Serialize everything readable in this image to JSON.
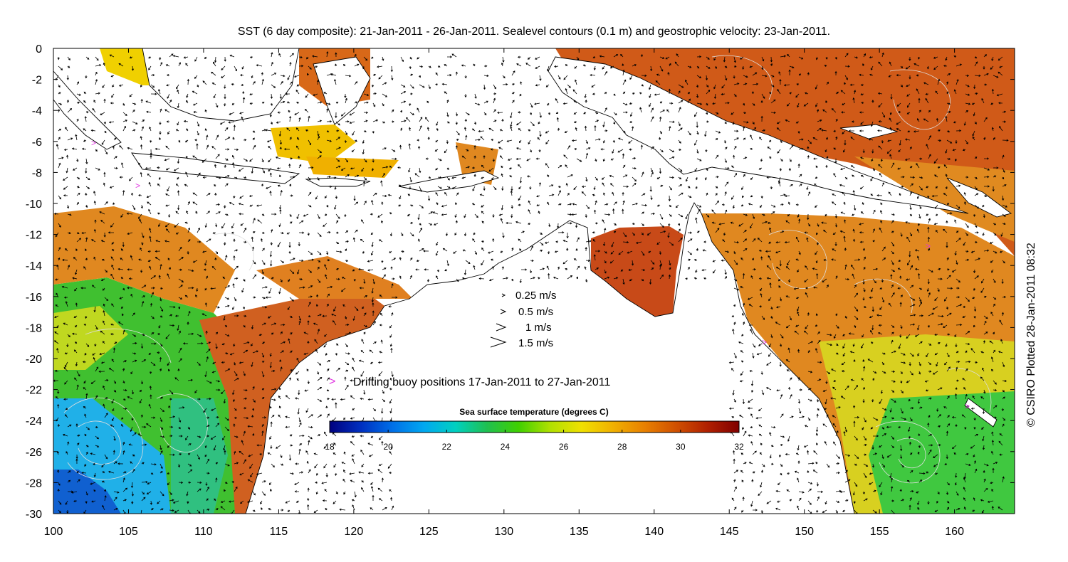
{
  "title": "SST (6 day composite): 21-Jan-2011 - 26-Jan-2011. Sealevel contours (0.1 m) and geostrophic velocity: 23-Jan-2011.",
  "credit": "© CSIRO Plotted 28-Jan-2011 08:32",
  "map": {
    "lon_range": [
      100,
      164
    ],
    "lat_range": [
      -30,
      0
    ],
    "x_ticks": [
      "100",
      "105",
      "110",
      "115",
      "120",
      "125",
      "130",
      "135",
      "140",
      "145",
      "150",
      "155",
      "160"
    ],
    "y_ticks": [
      "0",
      "-2",
      "-4",
      "-6",
      "-8",
      "-10",
      "-12",
      "-14",
      "-16",
      "-18",
      "-20",
      "-22",
      "-24",
      "-26",
      "-28",
      "-30"
    ],
    "land_color": "#ffffff",
    "velocity_arrow_color": "#000000",
    "contour_color": "#dddddd"
  },
  "legend": {
    "velocity": [
      "0.25 m/s",
      "0.5 m/s",
      "1 m/s",
      "1.5 m/s"
    ],
    "buoy_marker": ">",
    "buoy_color": "#e033e0",
    "buoy_text": "Drifting buoy positions 17-Jan-2011 to 27-Jan-2011"
  },
  "colorbar": {
    "title": "Sea surface temperature (degrees C)",
    "range": [
      18,
      32
    ],
    "ticks": [
      "18",
      "20",
      "22",
      "24",
      "26",
      "28",
      "30",
      "32"
    ],
    "colors": [
      "#00007f",
      "#0030c0",
      "#0070e8",
      "#00a8f0",
      "#00d0c0",
      "#20c050",
      "#40d000",
      "#b0e000",
      "#f0e000",
      "#f0b000",
      "#e88000",
      "#d05000",
      "#b02000",
      "#800000"
    ]
  }
}
